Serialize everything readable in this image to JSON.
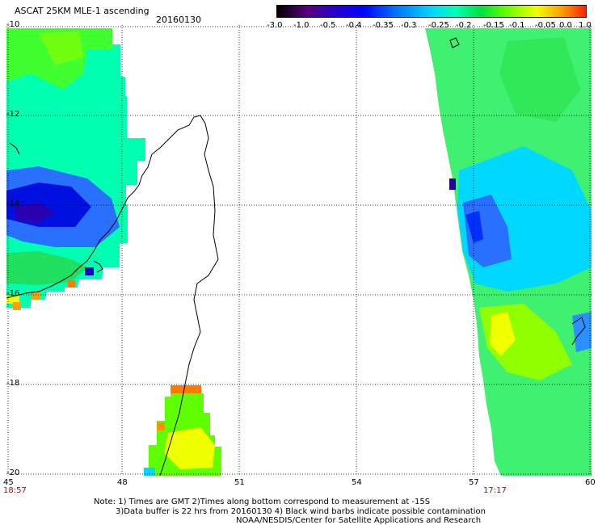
{
  "header": {
    "title": "ASCAT 25KM MLE-1 ascending",
    "date": "20160130"
  },
  "colorbar": {
    "tick_labels": [
      "-3.0",
      "-1.0",
      "-0.5",
      "-0.4",
      "-0.35",
      "-0.3",
      "-0.25",
      "-0.2",
      "-0.15",
      "-0.1",
      "-0.05",
      "0.0",
      "1.0"
    ],
    "colors": [
      "#000000",
      "#5a0080",
      "#2a00c8",
      "#0000ff",
      "#0070ff",
      "#00d8ff",
      "#00ffb0",
      "#00e040",
      "#60ff00",
      "#f0ff00",
      "#ffa000",
      "#ff2000"
    ]
  },
  "map": {
    "lat_labels": [
      "-10",
      "-12",
      "-14",
      "-16",
      "-18",
      "-20"
    ],
    "lon_labels": [
      "45",
      "48",
      "51",
      "54",
      "57",
      "60"
    ],
    "left_time": "18:57",
    "right_time": "17:17"
  },
  "footer": {
    "note_line1": "Note: 1) Times are GMT 2)Times along bottom correspond to measurement at -15S",
    "note_line2": "3)Data buffer is 22 hrs from 20160130 4) Black wind barbs indicate possible contamination",
    "credit": "NOAA/NESDIS/Center for Satellite Applications and Research"
  }
}
